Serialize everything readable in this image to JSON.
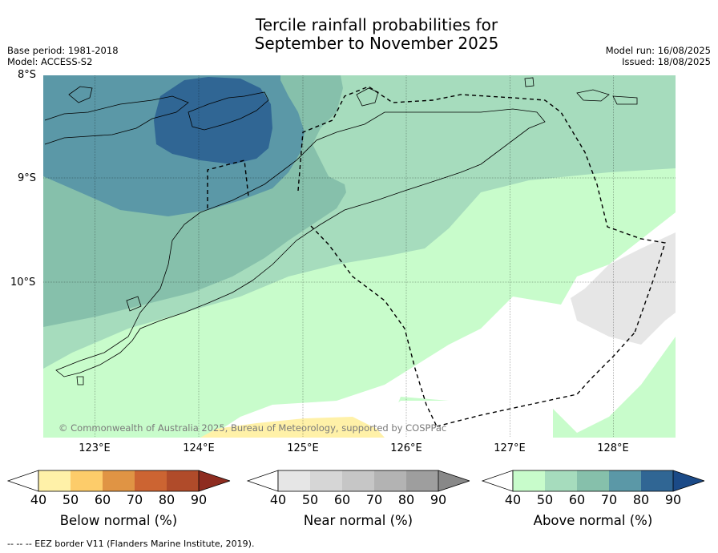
{
  "title_line1": "Tercile rainfall probabilities for",
  "title_line2": "September to November 2025",
  "meta_left": {
    "base_period": "Base period: 1981-2018",
    "model": "Model: ACCESS-S2"
  },
  "meta_right": {
    "model_run": "Model run: 16/08/2025",
    "issued": "Issued: 18/08/2025"
  },
  "lat_labels": [
    "8°S",
    "9°S",
    "10°S"
  ],
  "lon_labels": [
    "123°E",
    "124°E",
    "125°E",
    "126°E",
    "127°E",
    "128°E"
  ],
  "copyright": "© Commonwealth of Australia 2025, Bureau of Meteorology, supported by COSPPac",
  "colorbars": [
    {
      "label": "Below normal (%)",
      "ticks": [
        "40",
        "50",
        "60",
        "70",
        "80",
        "90"
      ],
      "colors": [
        "#fff1a8",
        "#fdcc6a",
        "#e09444",
        "#cc6432",
        "#b04b2a",
        "#8e2c20"
      ]
    },
    {
      "label": "Near normal (%)",
      "ticks": [
        "40",
        "50",
        "60",
        "70",
        "80",
        "90"
      ],
      "colors": [
        "#e6e6e6",
        "#d6d6d6",
        "#c6c6c6",
        "#b3b3b3",
        "#9e9e9e",
        "#888888"
      ]
    },
    {
      "label": "Above normal (%)",
      "ticks": [
        "40",
        "50",
        "60",
        "70",
        "80",
        "90"
      ],
      "colors": [
        "#c8fccb",
        "#a6dcbd",
        "#86c0ab",
        "#5b98a7",
        "#306694",
        "#1b4a87"
      ]
    }
  ],
  "footer": "-- -- -- EEZ border V11 (Flanders Marine Institute, 2019)."
}
